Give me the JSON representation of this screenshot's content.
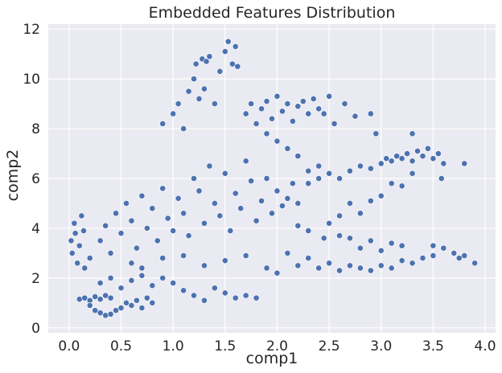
{
  "chart_data": {
    "type": "scatter",
    "title": "Embedded Features Distribution",
    "xlabel": "comp1",
    "ylabel": "comp2",
    "xlim": [
      -0.2,
      4.1
    ],
    "ylim": [
      -0.2,
      12.2
    ],
    "xticks": [
      0.0,
      0.5,
      1.0,
      1.5,
      2.0,
      2.5,
      3.0,
      3.5,
      4.0
    ],
    "xtick_labels": [
      "0.0",
      "0.5",
      "1.0",
      "1.5",
      "2.0",
      "2.5",
      "3.0",
      "3.5",
      "4.0"
    ],
    "yticks": [
      0,
      2,
      4,
      6,
      8,
      10,
      12
    ],
    "ytick_labels": [
      "0",
      "2",
      "4",
      "6",
      "8",
      "10",
      "12"
    ],
    "grid": true,
    "legend": false,
    "colors": {
      "point": "#4c72b0",
      "point_edge": "#ffffff",
      "background": "#eaeaf2",
      "grid": "#ffffff"
    },
    "points": [
      [
        0.02,
        3.5
      ],
      [
        0.03,
        3.0
      ],
      [
        0.05,
        4.2
      ],
      [
        0.06,
        3.8
      ],
      [
        0.08,
        2.6
      ],
      [
        0.1,
        3.3
      ],
      [
        0.12,
        4.5
      ],
      [
        0.14,
        3.9
      ],
      [
        0.15,
        2.4
      ],
      [
        0.1,
        1.15
      ],
      [
        0.15,
        1.2
      ],
      [
        0.2,
        1.1
      ],
      [
        0.25,
        1.25
      ],
      [
        0.3,
        1.15
      ],
      [
        0.35,
        1.3
      ],
      [
        0.4,
        1.2
      ],
      [
        0.2,
        0.9
      ],
      [
        0.25,
        0.7
      ],
      [
        0.3,
        0.6
      ],
      [
        0.35,
        0.5
      ],
      [
        0.4,
        0.55
      ],
      [
        0.45,
        0.7
      ],
      [
        0.5,
        0.8
      ],
      [
        0.55,
        1.0
      ],
      [
        0.6,
        0.9
      ],
      [
        0.65,
        1.1
      ],
      [
        0.7,
        0.8
      ],
      [
        0.75,
        1.2
      ],
      [
        0.8,
        1.0
      ],
      [
        0.3,
        1.8
      ],
      [
        0.4,
        2.0
      ],
      [
        0.5,
        1.6
      ],
      [
        0.6,
        1.9
      ],
      [
        0.7,
        2.1
      ],
      [
        0.8,
        1.7
      ],
      [
        0.9,
        2.0
      ],
      [
        1.0,
        1.8
      ],
      [
        1.1,
        1.5
      ],
      [
        1.2,
        1.3
      ],
      [
        1.3,
        1.1
      ],
      [
        1.4,
        1.6
      ],
      [
        1.5,
        1.4
      ],
      [
        1.6,
        1.2
      ],
      [
        1.7,
        1.3
      ],
      [
        1.8,
        1.2
      ],
      [
        0.2,
        2.8
      ],
      [
        0.3,
        3.5
      ],
      [
        0.35,
        4.1
      ],
      [
        0.4,
        3.0
      ],
      [
        0.45,
        4.6
      ],
      [
        0.5,
        3.8
      ],
      [
        0.55,
        5.0
      ],
      [
        0.6,
        4.3
      ],
      [
        0.65,
        3.2
      ],
      [
        0.7,
        5.3
      ],
      [
        0.75,
        4.0
      ],
      [
        0.8,
        4.8
      ],
      [
        0.85,
        3.5
      ],
      [
        0.9,
        5.6
      ],
      [
        0.95,
        4.4
      ],
      [
        1.0,
        3.9
      ],
      [
        1.05,
        5.2
      ],
      [
        1.1,
        4.6
      ],
      [
        1.15,
        3.7
      ],
      [
        1.2,
        6.0
      ],
      [
        1.25,
        5.5
      ],
      [
        1.3,
        4.2
      ],
      [
        1.35,
        6.5
      ],
      [
        1.4,
        5.0
      ],
      [
        1.45,
        4.5
      ],
      [
        1.5,
        6.2
      ],
      [
        1.55,
        3.9
      ],
      [
        1.6,
        5.4
      ],
      [
        1.65,
        4.8
      ],
      [
        1.7,
        6.7
      ],
      [
        1.75,
        5.9
      ],
      [
        1.8,
        4.3
      ],
      [
        1.85,
        5.1
      ],
      [
        1.9,
        6.0
      ],
      [
        1.95,
        4.6
      ],
      [
        2.0,
        5.5
      ],
      [
        2.05,
        4.9
      ],
      [
        2.1,
        5.2
      ],
      [
        2.15,
        5.8
      ],
      [
        2.2,
        5.0
      ],
      [
        0.9,
        8.2
      ],
      [
        1.0,
        8.6
      ],
      [
        1.05,
        9.0
      ],
      [
        1.1,
        8.0
      ],
      [
        1.15,
        9.5
      ],
      [
        1.2,
        10.0
      ],
      [
        1.22,
        10.6
      ],
      [
        1.28,
        10.8
      ],
      [
        1.32,
        10.7
      ],
      [
        1.35,
        10.9
      ],
      [
        1.45,
        10.3
      ],
      [
        1.5,
        11.1
      ],
      [
        1.53,
        11.5
      ],
      [
        1.57,
        10.6
      ],
      [
        1.6,
        11.3
      ],
      [
        1.62,
        10.5
      ],
      [
        1.3,
        9.6
      ],
      [
        1.25,
        9.2
      ],
      [
        1.4,
        9.0
      ],
      [
        1.7,
        8.6
      ],
      [
        1.75,
        9.0
      ],
      [
        1.8,
        8.2
      ],
      [
        1.85,
        8.8
      ],
      [
        1.9,
        9.1
      ],
      [
        1.95,
        8.4
      ],
      [
        2.0,
        9.3
      ],
      [
        2.05,
        8.7
      ],
      [
        2.1,
        9.0
      ],
      [
        2.15,
        8.3
      ],
      [
        2.2,
        8.9
      ],
      [
        2.25,
        9.1
      ],
      [
        2.3,
        8.6
      ],
      [
        2.35,
        9.2
      ],
      [
        2.4,
        8.8
      ],
      [
        2.45,
        8.6
      ],
      [
        2.5,
        9.3
      ],
      [
        2.55,
        8.2
      ],
      [
        2.65,
        9.0
      ],
      [
        2.75,
        8.5
      ],
      [
        2.9,
        8.6
      ],
      [
        2.95,
        7.8
      ],
      [
        2.3,
        5.8
      ],
      [
        2.4,
        6.0
      ],
      [
        2.5,
        6.2
      ],
      [
        2.6,
        6.0
      ],
      [
        2.7,
        6.3
      ],
      [
        2.8,
        6.5
      ],
      [
        2.9,
        6.4
      ],
      [
        3.0,
        6.6
      ],
      [
        3.05,
        6.8
      ],
      [
        3.1,
        6.7
      ],
      [
        3.15,
        6.9
      ],
      [
        3.2,
        6.8
      ],
      [
        3.25,
        7.0
      ],
      [
        3.3,
        6.7
      ],
      [
        3.35,
        7.1
      ],
      [
        3.4,
        6.9
      ],
      [
        3.45,
        7.2
      ],
      [
        3.5,
        6.8
      ],
      [
        3.55,
        7.0
      ],
      [
        3.6,
        6.6
      ],
      [
        3.3,
        7.8
      ],
      [
        3.8,
        6.6
      ],
      [
        3.58,
        6.0
      ],
      [
        2.1,
        3.0
      ],
      [
        2.2,
        2.5
      ],
      [
        2.3,
        2.8
      ],
      [
        2.4,
        2.4
      ],
      [
        2.5,
        2.6
      ],
      [
        2.6,
        2.3
      ],
      [
        2.7,
        2.5
      ],
      [
        2.8,
        2.4
      ],
      [
        2.9,
        2.3
      ],
      [
        3.0,
        2.5
      ],
      [
        3.1,
        2.4
      ],
      [
        3.2,
        2.7
      ],
      [
        3.3,
        2.6
      ],
      [
        3.4,
        2.8
      ],
      [
        3.5,
        2.9
      ],
      [
        3.6,
        3.2
      ],
      [
        3.7,
        3.0
      ],
      [
        3.8,
        2.9
      ],
      [
        3.9,
        2.6
      ],
      [
        3.75,
        2.8
      ],
      [
        3.5,
        3.3
      ],
      [
        2.2,
        4.1
      ],
      [
        2.3,
        3.9
      ],
      [
        2.45,
        3.6
      ],
      [
        2.5,
        4.2
      ],
      [
        2.6,
        3.7
      ],
      [
        2.7,
        3.6
      ],
      [
        2.8,
        3.2
      ],
      [
        2.9,
        3.5
      ],
      [
        3.0,
        3.1
      ],
      [
        3.1,
        3.4
      ],
      [
        3.2,
        3.3
      ],
      [
        2.6,
        4.5
      ],
      [
        2.7,
        5.0
      ],
      [
        2.8,
        4.6
      ],
      [
        2.9,
        5.1
      ],
      [
        3.0,
        5.3
      ],
      [
        3.1,
        5.8
      ],
      [
        3.2,
        5.7
      ],
      [
        3.3,
        6.2
      ],
      [
        0.6,
        2.6
      ],
      [
        0.7,
        2.4
      ],
      [
        0.9,
        2.8
      ],
      [
        1.1,
        2.9
      ],
      [
        1.3,
        2.5
      ],
      [
        1.5,
        2.7
      ],
      [
        1.7,
        2.9
      ],
      [
        1.9,
        2.4
      ],
      [
        2.0,
        2.2
      ],
      [
        2.4,
        6.5
      ],
      [
        2.3,
        6.3
      ],
      [
        2.2,
        6.9
      ],
      [
        2.0,
        7.5
      ],
      [
        1.9,
        7.8
      ],
      [
        2.1,
        7.2
      ]
    ]
  }
}
